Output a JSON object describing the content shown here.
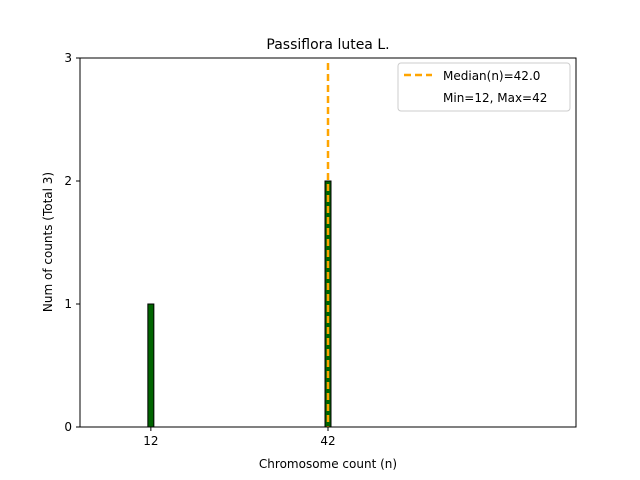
{
  "chart_data": {
    "type": "bar",
    "title": "Passiflora lutea L.",
    "xlabel": "Chromosome count (n)",
    "ylabel": "Num of counts     (Total 3)",
    "categories": [
      12,
      42
    ],
    "values": [
      1,
      2
    ],
    "xlim": [
      0,
      84
    ],
    "ylim": [
      0,
      3
    ],
    "xticks": [
      12,
      42
    ],
    "yticks": [
      0,
      1,
      2,
      3
    ],
    "median": 42.0,
    "legend_position": "top-right",
    "legend": [
      "Median(n)=42.0",
      "Min=12, Max=42"
    ],
    "bar_color": "#006400",
    "bar_edge_color": "#000000",
    "median_color": "#FFA500",
    "grid": false
  }
}
